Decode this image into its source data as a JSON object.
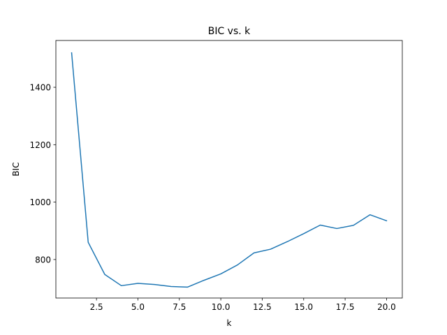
{
  "chart_data": {
    "type": "line",
    "title": "BIC vs. k",
    "xlabel": "k",
    "ylabel": "BIC",
    "xlim": [
      0.05,
      20.95
    ],
    "ylim": [
      666,
      1563
    ],
    "grid": false,
    "legend": "none",
    "x_ticks": [
      2.5,
      5.0,
      7.5,
      10.0,
      12.5,
      15.0,
      17.5,
      20.0
    ],
    "x_tick_labels": [
      "2.5",
      "5.0",
      "7.5",
      "10.0",
      "12.5",
      "15.0",
      "17.5",
      "20.0"
    ],
    "y_ticks": [
      800,
      1000,
      1200,
      1400
    ],
    "y_tick_labels": [
      "800",
      "1000",
      "1200",
      "1400"
    ],
    "series": [
      {
        "color": "#1f77b4",
        "x": [
          1,
          2,
          3,
          4,
          5,
          6,
          7,
          8,
          9,
          10,
          11,
          12,
          13,
          14,
          15,
          16,
          17,
          18,
          19,
          20
        ],
        "y": [
          1520,
          860,
          748,
          709,
          717,
          713,
          706,
          704,
          728,
          750,
          781,
          823,
          836,
          862,
          890,
          920,
          908,
          919,
          956,
          935
        ]
      }
    ]
  }
}
